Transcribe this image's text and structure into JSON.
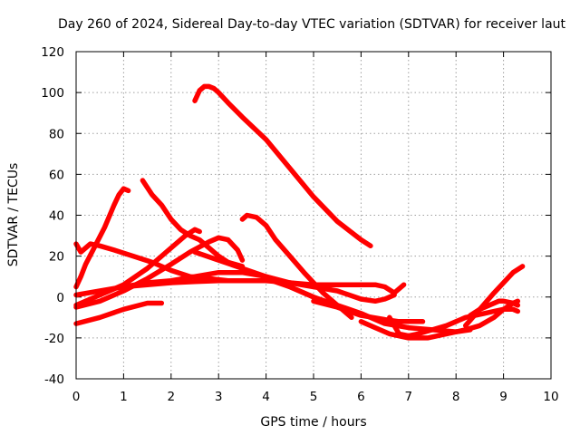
{
  "chart_data": {
    "type": "line",
    "title": "Day 260 of 2024, Sidereal Day-to-day VTEC variation (SDTVAR) for receiver laut",
    "xlabel": "GPS time / hours",
    "ylabel": "SDTVAR / TECUs",
    "xlim": [
      0,
      10
    ],
    "ylim": [
      -40,
      120
    ],
    "x_ticks": [
      "0",
      "1",
      "2",
      "3",
      "4",
      "5",
      "6",
      "7",
      "8",
      "9",
      "10"
    ],
    "y_ticks": [
      "-40",
      "-20",
      "0",
      "20",
      "40",
      "60",
      "80",
      "100",
      "120"
    ],
    "grid": true,
    "legend": "none",
    "color": "#ff0000",
    "series": [
      {
        "x": [
          2.5,
          2.6,
          2.7,
          2.8,
          2.9,
          3.0,
          3.2,
          3.5,
          4.0,
          4.5,
          5.0,
          5.5,
          6.0,
          6.2
        ],
        "y": [
          96,
          101,
          103,
          103,
          102,
          100,
          95,
          88,
          77,
          63,
          49,
          37,
          28,
          25
        ]
      },
      {
        "x": [
          0.0,
          0.1,
          0.2,
          0.4,
          0.6,
          0.8,
          0.9,
          1.0,
          1.1
        ],
        "y": [
          5,
          10,
          16,
          25,
          34,
          45,
          50,
          53,
          52
        ]
      },
      {
        "x": [
          1.4,
          1.6,
          1.8,
          2.0,
          2.2,
          2.4,
          2.6,
          2.8,
          3.0,
          3.2,
          3.5
        ],
        "y": [
          57,
          50,
          45,
          38,
          33,
          30,
          28,
          24,
          20,
          17,
          15
        ]
      },
      {
        "x": [
          3.5,
          3.6,
          3.8,
          4.0,
          4.2,
          4.5,
          4.8,
          5.0,
          5.2,
          5.4,
          5.6,
          5.8
        ],
        "y": [
          38,
          40,
          39,
          35,
          28,
          20,
          12,
          7,
          2,
          -2,
          -6,
          -10
        ]
      },
      {
        "x": [
          0.0,
          0.1,
          0.3,
          0.5,
          0.8,
          1.2,
          1.6,
          2.0,
          2.4,
          2.8,
          3.2,
          3.5
        ],
        "y": [
          26,
          22,
          26,
          25,
          23,
          20,
          17,
          13,
          10,
          9,
          8,
          8
        ]
      },
      {
        "x": [
          0.0,
          0.5,
          1.0,
          1.5,
          2.0,
          2.4,
          2.8,
          3.0,
          3.2,
          3.4,
          3.5
        ],
        "y": [
          -5,
          -2,
          3,
          9,
          16,
          22,
          27,
          29,
          28,
          23,
          18
        ]
      },
      {
        "x": [
          0.0,
          0.5,
          1.0,
          1.5,
          2.0,
          2.3,
          2.5,
          2.6
        ],
        "y": [
          -4,
          1,
          6,
          14,
          24,
          30,
          33,
          32
        ]
      },
      {
        "x": [
          0.0,
          0.5,
          1.0,
          1.5,
          1.8
        ],
        "y": [
          -13,
          -10,
          -6,
          -3,
          -3
        ]
      },
      {
        "x": [
          1.0,
          1.5,
          2.0,
          2.5,
          3.0,
          3.5,
          4.0,
          4.5,
          5.0,
          5.5,
          6.0,
          6.3,
          6.5,
          6.7,
          6.9
        ],
        "y": [
          5,
          6,
          7,
          7.5,
          8,
          8,
          8,
          7,
          6,
          6,
          6,
          6,
          5,
          2,
          6
        ]
      },
      {
        "x": [
          0.0,
          0.5,
          1.0,
          1.5,
          2.0,
          2.5,
          3.0,
          3.5,
          4.0,
          4.5,
          5.0,
          5.5,
          6.0,
          6.3,
          6.5,
          6.6,
          6.7
        ],
        "y": [
          1,
          3,
          5,
          7,
          8,
          10,
          12,
          12,
          10,
          7,
          5,
          3,
          -1,
          -2,
          -1,
          0,
          1
        ]
      },
      {
        "x": [
          2.5,
          3.0,
          3.5,
          4.0,
          4.5,
          5.0,
          5.5,
          6.0,
          6.5,
          7.0,
          7.5,
          8.0,
          8.3
        ],
        "y": [
          22,
          18,
          14,
          10,
          5,
          0,
          -4,
          -8,
          -13,
          -15,
          -16,
          -17,
          -16
        ]
      },
      {
        "x": [
          5.0,
          5.5,
          6.0,
          6.5,
          6.8,
          7.0,
          7.3
        ],
        "y": [
          -2,
          -5,
          -9,
          -11,
          -12,
          -12,
          -12
        ]
      },
      {
        "x": [
          4.0,
          4.5,
          5.0,
          5.3
        ],
        "y": [
          9,
          5,
          0,
          -3
        ]
      },
      {
        "x": [
          6.0,
          6.3,
          6.6,
          7.0,
          7.4,
          7.8,
          8.2,
          8.5,
          8.8,
          9.0,
          9.2,
          9.3
        ],
        "y": [
          -12,
          -15,
          -18,
          -20,
          -20,
          -18,
          -16,
          -14,
          -10,
          -6,
          -3,
          -2
        ]
      },
      {
        "x": [
          6.6,
          6.7,
          6.8,
          7.0,
          7.2,
          7.5,
          7.8,
          8.0,
          8.2,
          8.4,
          8.6,
          8.8,
          9.0,
          9.2,
          9.3
        ],
        "y": [
          -10,
          -14,
          -18,
          -19,
          -18,
          -16,
          -14,
          -12,
          -10,
          -9,
          -8,
          -7,
          -6,
          -6,
          -7
        ]
      },
      {
        "x": [
          8.3,
          8.5,
          8.7,
          8.9,
          9.0,
          9.2,
          9.3
        ],
        "y": [
          -9,
          -6,
          -4,
          -2,
          -2,
          -3,
          -4
        ]
      },
      {
        "x": [
          8.2,
          8.5,
          8.8,
          9.0,
          9.2,
          9.4
        ],
        "y": [
          -14,
          -6,
          2,
          7,
          12,
          15
        ]
      }
    ]
  }
}
